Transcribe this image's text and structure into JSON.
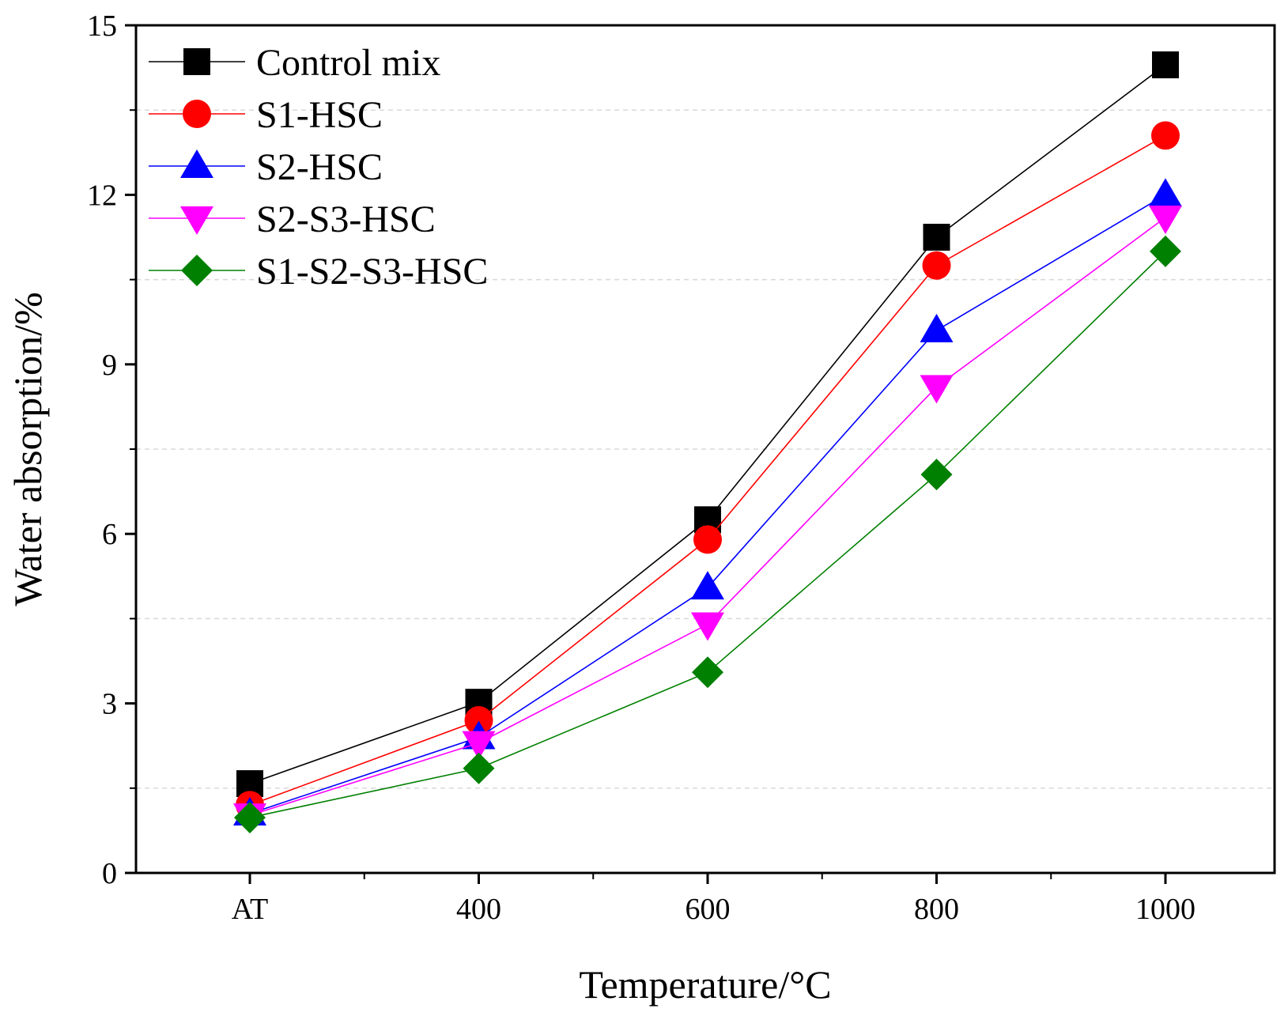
{
  "chart_data": {
    "type": "line",
    "title": "",
    "xlabel": "Temperature/°C",
    "ylabel": "Water absorption/%",
    "categories": [
      "AT",
      "400",
      "600",
      "800",
      "1000"
    ],
    "ylim": [
      0,
      15
    ],
    "yticks": [
      0,
      3,
      6,
      9,
      12,
      15
    ],
    "yticks_labels": [
      "0",
      "3",
      "6",
      "9",
      "12",
      "15"
    ],
    "grid": "horizontal dashed at minor ticks",
    "legend_position": "top-left",
    "series": [
      {
        "name": "Control mix",
        "color": "#000000",
        "marker": "square",
        "values": [
          1.58,
          3.02,
          6.25,
          11.25,
          14.3
        ]
      },
      {
        "name": "S1-HSC",
        "color": "#ff0000",
        "marker": "circle",
        "values": [
          1.2,
          2.7,
          5.9,
          10.75,
          13.05
        ]
      },
      {
        "name": "S2-HSC",
        "color": "#0000ff",
        "marker": "triangle-up",
        "values": [
          1.05,
          2.4,
          5.05,
          9.6,
          12.0
        ]
      },
      {
        "name": "S2-S3-HSC",
        "color": "#ff00ff",
        "marker": "triangle-down",
        "values": [
          1.02,
          2.3,
          4.4,
          8.6,
          11.6
        ]
      },
      {
        "name": "S1-S2-S3-HSC",
        "color": "#008000",
        "marker": "diamond",
        "values": [
          0.98,
          1.85,
          3.55,
          7.05,
          11.0
        ]
      }
    ]
  }
}
